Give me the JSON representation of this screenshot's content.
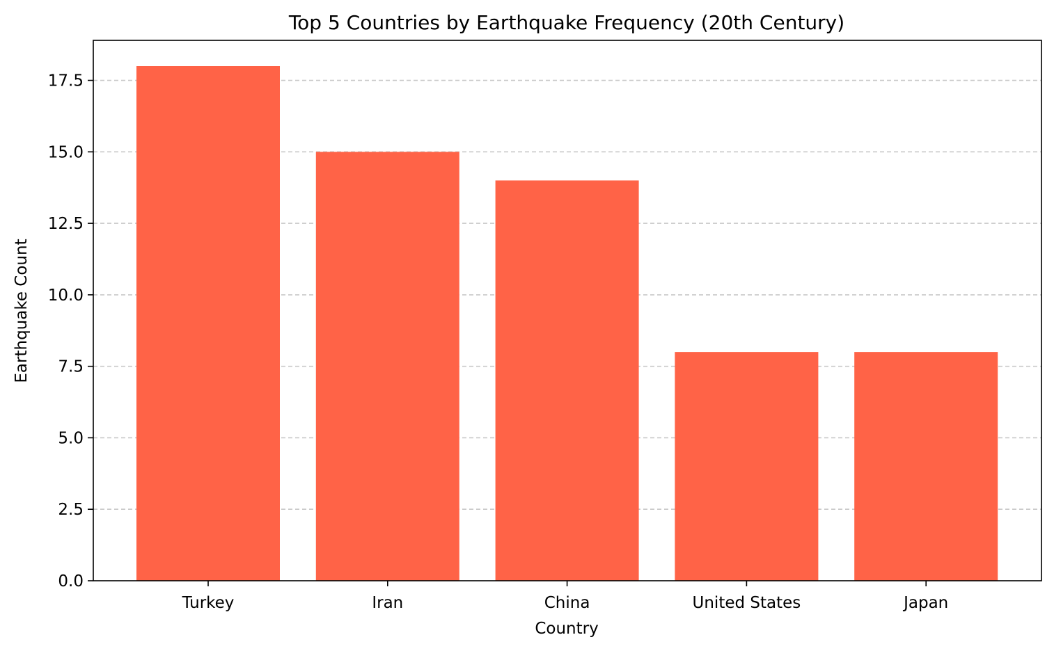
{
  "chart_data": {
    "type": "bar",
    "title": "Top 5 Countries by Earthquake Frequency (20th Century)",
    "xlabel": "Country",
    "ylabel": "Earthquake Count",
    "categories": [
      "Turkey",
      "Iran",
      "China",
      "United States",
      "Japan"
    ],
    "values": [
      18,
      15,
      14,
      8,
      8
    ],
    "ylim": [
      0,
      18.9
    ],
    "yticks": [
      "0.0",
      "2.5",
      "5.0",
      "7.5",
      "10.0",
      "12.5",
      "15.0",
      "17.5"
    ],
    "grid": "y-axis, dashed",
    "bar_color": "#ff6347",
    "grid_color": "#c8c8c8"
  }
}
